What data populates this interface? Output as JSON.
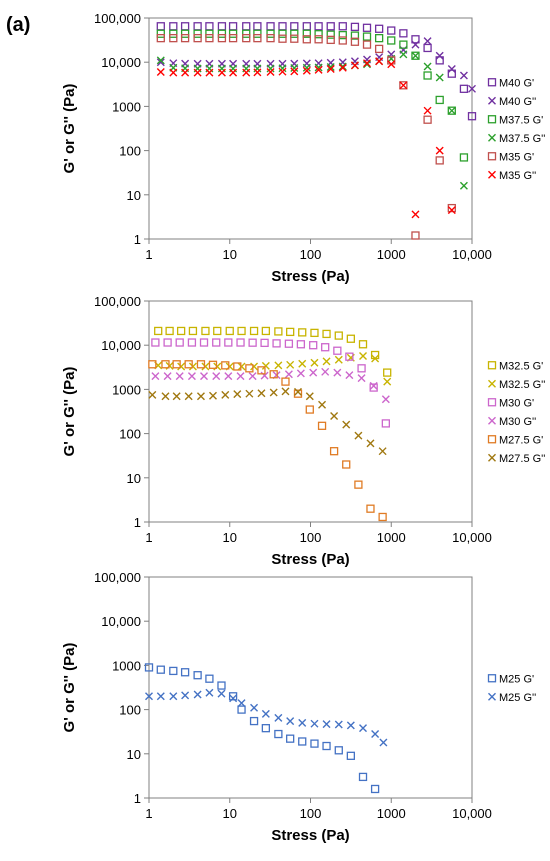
{
  "figure": {
    "panel_label": "(a)"
  },
  "chart_data": [
    {
      "type": "scatter",
      "xscale": "log",
      "yscale": "log",
      "xlim": [
        1,
        10000
      ],
      "ylim": [
        1,
        100000
      ],
      "xlabel": "Stress (Pa)",
      "ylabel": "G' or G'' (Pa)",
      "xticks": [
        "1",
        "10",
        "100",
        "1000",
        "10,000"
      ],
      "yticks": [
        "1",
        "10",
        "100",
        "1000",
        "10,000",
        "100,000"
      ],
      "grid": false,
      "legend_position": "right",
      "series": [
        {
          "name": "M40 G'",
          "marker": "square",
          "color": "#7030a0",
          "x": [
            1.4,
            2,
            2.8,
            4,
            5.6,
            8,
            11,
            16,
            22,
            32,
            45,
            63,
            90,
            126,
            178,
            251,
            355,
            501,
            708,
            1000,
            1413,
            1995,
            2818,
            3981,
            5623,
            7943,
            10000
          ],
          "y": [
            65000,
            65000,
            65000,
            65000,
            65000,
            65000,
            65000,
            65000,
            65000,
            65000,
            65000,
            65000,
            65000,
            65000,
            65000,
            65000,
            63000,
            60000,
            57000,
            52000,
            45000,
            33000,
            21000,
            11000,
            5500,
            2500,
            600
          ]
        },
        {
          "name": "M40 G''",
          "marker": "x",
          "color": "#7030a0",
          "x": [
            1.4,
            2,
            2.8,
            4,
            5.6,
            8,
            11,
            16,
            22,
            32,
            45,
            63,
            90,
            126,
            178,
            251,
            355,
            501,
            708,
            1000,
            1413,
            1995,
            2818,
            3981,
            5623,
            7943,
            10000
          ],
          "y": [
            10000,
            9500,
            9300,
            9200,
            9200,
            9200,
            9200,
            9200,
            9200,
            9200,
            9200,
            9300,
            9400,
            9500,
            9700,
            10000,
            10500,
            11500,
            13000,
            15000,
            19000,
            25000,
            30000,
            14000,
            7000,
            5000,
            2500
          ]
        },
        {
          "name": "M37.5 G'",
          "marker": "square",
          "color": "#2ca02c",
          "x": [
            1.4,
            2,
            2.8,
            4,
            5.6,
            8,
            11,
            16,
            22,
            32,
            45,
            63,
            90,
            126,
            178,
            251,
            355,
            501,
            708,
            1000,
            1413,
            1995,
            2818,
            3981,
            5623,
            7943
          ],
          "y": [
            44000,
            44000,
            44000,
            44000,
            44000,
            44000,
            44000,
            44000,
            44000,
            44000,
            44000,
            44000,
            44000,
            43000,
            42000,
            41000,
            40000,
            38000,
            35000,
            31000,
            25000,
            14000,
            5000,
            1400,
            800,
            70
          ]
        },
        {
          "name": "M37.5 G''",
          "marker": "x",
          "color": "#2ca02c",
          "x": [
            1.4,
            2,
            2.8,
            4,
            5.6,
            8,
            11,
            16,
            22,
            32,
            45,
            63,
            90,
            126,
            178,
            251,
            355,
            501,
            708,
            1000,
            1413,
            1995,
            2818,
            3981,
            5623,
            7943
          ],
          "y": [
            11000,
            7500,
            7300,
            7200,
            7200,
            7200,
            7200,
            7200,
            7200,
            7200,
            7300,
            7400,
            7500,
            7600,
            7800,
            8000,
            8500,
            9000,
            10500,
            12000,
            15000,
            14000,
            8000,
            4500,
            800,
            16
          ]
        },
        {
          "name": "M35 G'",
          "marker": "square",
          "color": "#c0504d",
          "x": [
            1.4,
            2,
            2.8,
            4,
            5.6,
            8,
            11,
            16,
            22,
            32,
            45,
            63,
            90,
            126,
            178,
            251,
            355,
            501,
            708,
            1000,
            1413,
            1995,
            2818,
            3981,
            5623
          ],
          "y": [
            35000,
            35000,
            35000,
            35000,
            35000,
            35000,
            35000,
            35000,
            35000,
            35000,
            34000,
            34000,
            33000,
            33000,
            32000,
            31000,
            29000,
            25000,
            20000,
            11000,
            3000,
            1.2,
            500,
            60,
            5
          ]
        },
        {
          "name": "M35 G''",
          "marker": "x",
          "color": "#ff0000",
          "x": [
            1.4,
            2,
            2.8,
            4,
            5.6,
            8,
            11,
            16,
            22,
            32,
            45,
            63,
            90,
            126,
            178,
            251,
            355,
            501,
            708,
            1000,
            1413,
            1995,
            2818,
            3981,
            5623
          ],
          "y": [
            6000,
            5800,
            5800,
            5800,
            5800,
            5800,
            5800,
            5800,
            5900,
            6000,
            6100,
            6200,
            6400,
            6700,
            7000,
            7500,
            8500,
            9500,
            10500,
            9000,
            3000,
            3.6,
            800,
            100,
            4.5
          ]
        }
      ]
    },
    {
      "type": "scatter",
      "xscale": "log",
      "yscale": "log",
      "xlim": [
        1,
        10000
      ],
      "ylim": [
        1,
        100000
      ],
      "xlabel": "Stress (Pa)",
      "ylabel": "G' or G'' (Pa)",
      "xticks": [
        "1",
        "10",
        "100",
        "1000",
        "10,000"
      ],
      "yticks": [
        "1",
        "10",
        "100",
        "1000",
        "10,000",
        "100,000"
      ],
      "grid": false,
      "legend_position": "right",
      "series": [
        {
          "name": "M32.5 G'",
          "marker": "square",
          "color": "#c8b400",
          "x": [
            1.3,
            1.8,
            2.5,
            3.5,
            5,
            7,
            10,
            14,
            20,
            28,
            40,
            56,
            79,
            112,
            158,
            224,
            316,
            447,
            631,
            891
          ],
          "y": [
            21000,
            21000,
            21000,
            21000,
            21000,
            21000,
            21000,
            21000,
            21000,
            21000,
            20500,
            20000,
            19500,
            19000,
            18000,
            16500,
            14000,
            10500,
            6000,
            2400
          ]
        },
        {
          "name": "M32.5 G''",
          "marker": "x",
          "color": "#c8b400",
          "x": [
            1.3,
            1.8,
            2.5,
            3.5,
            5,
            7,
            10,
            14,
            20,
            28,
            40,
            56,
            79,
            112,
            158,
            224,
            316,
            447,
            631,
            891
          ],
          "y": [
            3500,
            3400,
            3300,
            3300,
            3300,
            3300,
            3300,
            3300,
            3300,
            3400,
            3500,
            3600,
            3800,
            4000,
            4300,
            4700,
            5200,
            5700,
            5000,
            1500
          ]
        },
        {
          "name": "M30 G'",
          "marker": "square",
          "color": "#cc66cc",
          "x": [
            1.2,
            1.7,
            2.4,
            3.4,
            4.8,
            6.8,
            9.6,
            13.6,
            19.2,
            27,
            38,
            54,
            76,
            108,
            152,
            215,
            303,
            429,
            606,
            857
          ],
          "y": [
            11500,
            11500,
            11500,
            11500,
            11500,
            11500,
            11500,
            11500,
            11400,
            11300,
            11000,
            10800,
            10500,
            10000,
            9000,
            7500,
            5500,
            3000,
            1100,
            170
          ]
        },
        {
          "name": "M30 G''",
          "marker": "x",
          "color": "#cc66cc",
          "x": [
            1.2,
            1.7,
            2.4,
            3.4,
            4.8,
            6.8,
            9.6,
            13.6,
            19.2,
            27,
            38,
            54,
            76,
            108,
            152,
            215,
            303,
            429,
            606,
            857
          ],
          "y": [
            2000,
            2000,
            2000,
            2000,
            2000,
            2000,
            2000,
            2000,
            2000,
            2050,
            2100,
            2200,
            2300,
            2400,
            2500,
            2400,
            2100,
            1800,
            1200,
            600
          ]
        },
        {
          "name": "M27.5 G'",
          "marker": "square",
          "color": "#e07b24",
          "x": [
            1.1,
            1.6,
            2.2,
            3.1,
            4.4,
            6.2,
            8.8,
            12.4,
            17.5,
            24.7,
            35,
            49,
            70,
            98,
            139,
            196,
            277,
            392,
            553,
            782
          ],
          "y": [
            3700,
            3700,
            3700,
            3700,
            3700,
            3600,
            3500,
            3300,
            3000,
            2700,
            2200,
            1500,
            800,
            350,
            150,
            40,
            20,
            7,
            2,
            1.3
          ]
        },
        {
          "name": "M27.5 G''",
          "marker": "x",
          "color": "#a07810",
          "x": [
            1.1,
            1.6,
            2.2,
            3.1,
            4.4,
            6.2,
            8.8,
            12.4,
            17.5,
            24.7,
            35,
            49,
            70,
            98,
            139,
            196,
            277,
            392,
            553,
            782
          ],
          "y": [
            750,
            700,
            700,
            700,
            700,
            720,
            750,
            780,
            800,
            820,
            850,
            900,
            880,
            700,
            450,
            250,
            160,
            90,
            60,
            40
          ]
        }
      ]
    },
    {
      "type": "scatter",
      "xscale": "log",
      "yscale": "log",
      "xlim": [
        1,
        10000
      ],
      "ylim": [
        1,
        100000
      ],
      "xlabel": "Stress (Pa)",
      "ylabel": "G' or G'' (Pa)",
      "xticks": [
        "1",
        "10",
        "100",
        "1000",
        "10,000"
      ],
      "yticks": [
        "1",
        "10",
        "100",
        "1000",
        "10,000",
        "100,000"
      ],
      "grid": false,
      "legend_position": "right",
      "series": [
        {
          "name": "M25 G'",
          "marker": "square",
          "color": "#4472c4",
          "x": [
            1,
            1.4,
            2,
            2.8,
            4,
            5.6,
            7.9,
            11,
            14,
            20,
            28,
            40,
            56,
            79,
            112,
            158,
            224,
            316,
            447,
            631
          ],
          "y": [
            900,
            800,
            750,
            700,
            600,
            500,
            350,
            200,
            100,
            55,
            38,
            28,
            22,
            19,
            17,
            15,
            12,
            9,
            3,
            1.6
          ]
        },
        {
          "name": "M25 G''",
          "marker": "x",
          "color": "#4472c4",
          "x": [
            1,
            1.4,
            2,
            2.8,
            4,
            5.6,
            7.9,
            11,
            14,
            20,
            28,
            40,
            56,
            79,
            112,
            158,
            224,
            316,
            447,
            631,
            800
          ],
          "y": [
            200,
            200,
            200,
            210,
            220,
            240,
            230,
            180,
            140,
            110,
            80,
            65,
            55,
            50,
            48,
            47,
            46,
            44,
            38,
            28,
            18
          ]
        }
      ]
    }
  ]
}
